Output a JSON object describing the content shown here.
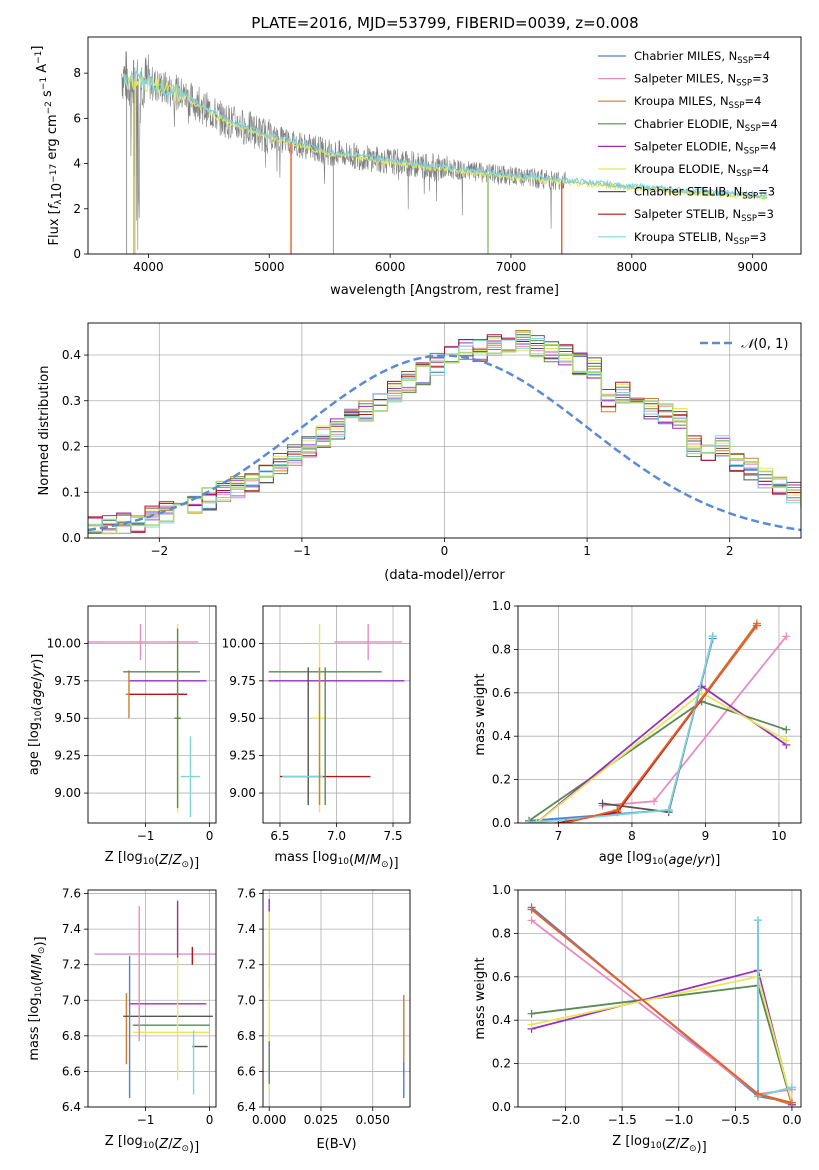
{
  "title": "PLATE=2016, MJD=53799, FIBERID=0039, z=0.008",
  "colors": {
    "chabrier_miles": "#4f7fd6",
    "salpeter_miles": "#e88cc0",
    "kroupa_miles": "#c8812e",
    "chabrier_elodie": "#5a8a55",
    "salpeter_elodie": "#9a2fbe",
    "kroupa_elodie": "#e6e85a",
    "chabrier_stelib": "#555555",
    "salpeter_stelib": "#b01818",
    "kroupa_stelib": "#7fd4e0",
    "data": "#808080",
    "red_model": "#e8602a",
    "normal": "#5b8bd6"
  },
  "legend": [
    {
      "pre": "Chabrier MILES, N",
      "sub": "SSP",
      "post": "=4",
      "color": "#4f7fd6"
    },
    {
      "pre": "Salpeter MILES, N",
      "sub": "SSP",
      "post": "=3",
      "color": "#e88cc0"
    },
    {
      "pre": "Kroupa MILES, N",
      "sub": "SSP",
      "post": "=4",
      "color": "#c8812e"
    },
    {
      "pre": "Chabrier ELODIE, N",
      "sub": "SSP",
      "post": "=4",
      "color": "#5a8a55"
    },
    {
      "pre": "Salpeter ELODIE, N",
      "sub": "SSP",
      "post": "=4",
      "color": "#9a2fbe"
    },
    {
      "pre": "Kroupa ELODIE, N",
      "sub": "SSP",
      "post": "=4",
      "color": "#e6e85a"
    },
    {
      "pre": "Chabrier STELIB, N",
      "sub": "SSP",
      "post": "=3",
      "color": "#555555"
    },
    {
      "pre": "Salpeter STELIB, N",
      "sub": "SSP",
      "post": "=3",
      "color": "#b01818"
    },
    {
      "pre": "Kroupa STELIB, N",
      "sub": "SSP",
      "post": "=3",
      "color": "#7fd4e0"
    }
  ],
  "chart_data": [
    {
      "id": "spectrum",
      "type": "line",
      "xlabel": "wavelength [Angstrom, rest frame]",
      "ylabel": "Flux [f_λ 10^-17 erg cm^-2 s^-1 A^-1]",
      "xlim": [
        3500,
        9400
      ],
      "ylim": [
        0,
        9.6
      ],
      "xticks": [
        4000,
        5000,
        6000,
        7000,
        8000,
        9000
      ],
      "yticks": [
        0,
        2,
        4,
        6,
        8
      ],
      "grid": false,
      "legend_position": "top-right",
      "continuum": {
        "x": [
          3780,
          3850,
          3950,
          4100,
          4300,
          4600,
          5000,
          5500,
          6000,
          6500,
          7000,
          7500,
          8000,
          8500,
          9000,
          9120
        ],
        "y": [
          8.0,
          7.6,
          7.7,
          7.4,
          7.0,
          6.0,
          5.2,
          4.5,
          4.1,
          3.75,
          3.45,
          3.2,
          2.95,
          2.75,
          2.6,
          2.5
        ]
      },
      "model_dropouts": [
        {
          "x": 3890,
          "color": "#e6e85a"
        },
        {
          "x": 5180,
          "color": "#e8602a"
        },
        {
          "x": 6810,
          "color": "#8bc070"
        },
        {
          "x": 7420,
          "color": "#e8602a"
        }
      ],
      "data_range": [
        3780,
        7450
      ],
      "model_range": [
        3790,
        9120
      ]
    },
    {
      "id": "residuals",
      "type": "area",
      "xlabel": "(data-model)/error",
      "ylabel": "Normed distribution",
      "xlim": [
        -2.5,
        2.5
      ],
      "ylim": [
        0,
        0.47
      ],
      "xticks": [
        -2,
        -1,
        0,
        1,
        2
      ],
      "yticks": [
        0.0,
        0.1,
        0.2,
        0.3,
        0.4
      ],
      "grid": true,
      "legend_label": "N(0,1)",
      "legend_position": "top-right",
      "bin_width": 0.1,
      "bin_start": -2.5,
      "base_hist": [
        0.022,
        0.025,
        0.03,
        0.035,
        0.045,
        0.055,
        0.06,
        0.07,
        0.085,
        0.1,
        0.11,
        0.125,
        0.14,
        0.16,
        0.18,
        0.2,
        0.22,
        0.24,
        0.26,
        0.28,
        0.3,
        0.32,
        0.34,
        0.36,
        0.38,
        0.4,
        0.41,
        0.41,
        0.42,
        0.42,
        0.43,
        0.42,
        0.41,
        0.4,
        0.38,
        0.37,
        0.3,
        0.32,
        0.3,
        0.28,
        0.27,
        0.26,
        0.2,
        0.19,
        0.2,
        0.16,
        0.15,
        0.13,
        0.12,
        0.1,
        0.09,
        0.08,
        0.065,
        0.06,
        0.05,
        0.045,
        0.04,
        0.035,
        0.03,
        0.028
      ]
    },
    {
      "id": "age-vs-metallicity",
      "type": "scatter",
      "xlabel": "Z [log10(Z/Z⊙)]",
      "ylabel": "age [log10(age/yr)]",
      "xlim": [
        -1.9,
        0.1
      ],
      "ylim": [
        8.8,
        10.25
      ],
      "xticks": [
        -1,
        0
      ],
      "yticks": [
        9.0,
        9.25,
        9.5,
        9.75,
        10.0
      ],
      "grid": true,
      "points": [
        {
          "x": -0.3,
          "y": 9.11,
          "xerr": 0.15,
          "yerr": 0.27,
          "color": "#7fd4e0"
        },
        {
          "x": -1.08,
          "y": 10.01,
          "xerr": 0.9,
          "yerr": 0.12,
          "color": "#e88cc0"
        },
        {
          "x": -1.26,
          "y": 9.66,
          "xerr": 0.05,
          "yerr": 0.16,
          "color": "#c8812e"
        },
        {
          "x": -0.75,
          "y": 9.81,
          "xerr": 0.6,
          "yerr": 0.0,
          "color": "#5a8a55"
        },
        {
          "x": -0.65,
          "y": 9.75,
          "xerr": 0.6,
          "yerr": 0.0,
          "color": "#9a2fbe"
        },
        {
          "x": -0.5,
          "y": 9.5,
          "xerr": 0.05,
          "yerr": 0.63,
          "color": "#e6e85a"
        },
        {
          "x": -0.52,
          "y": 9.66,
          "xerr": 0.12,
          "yerr": 0.0,
          "color": "#555555"
        },
        {
          "x": -0.8,
          "y": 9.66,
          "xerr": 0.45,
          "yerr": 0.0,
          "color": "#b01818"
        },
        {
          "x": -0.5,
          "y": 9.5,
          "xerr": 0.05,
          "yerr": 0.6,
          "color": "#5a8a55"
        }
      ]
    },
    {
      "id": "age-vs-mass",
      "type": "scatter",
      "xlabel": "mass [log10(M/M⊙)]",
      "ylabel": "",
      "xlim": [
        6.35,
        7.65
      ],
      "ylim": [
        8.8,
        10.25
      ],
      "xticks": [
        6.5,
        7.0,
        7.5
      ],
      "yticks": [
        9.0,
        9.25,
        9.5,
        9.75,
        10.0
      ],
      "grid": true,
      "points": [
        {
          "x": 7.28,
          "y": 10.01,
          "xerr": 0.3,
          "yerr": 0.12,
          "color": "#e88cc0"
        },
        {
          "x": 6.9,
          "y": 9.81,
          "xerr": 0.5,
          "yerr": 0.0,
          "color": "#5a8a55"
        },
        {
          "x": 7.0,
          "y": 9.75,
          "xerr": 0.6,
          "yerr": 0.0,
          "color": "#9a2fbe"
        },
        {
          "x": 6.85,
          "y": 9.5,
          "xerr": 0.05,
          "yerr": 0.63,
          "color": "#e6e85a"
        },
        {
          "x": 6.75,
          "y": 9.38,
          "xerr": 0.0,
          "yerr": 0.46,
          "color": "#555555"
        },
        {
          "x": 6.9,
          "y": 9.11,
          "xerr": 0.4,
          "yerr": 0.0,
          "color": "#b01818"
        },
        {
          "x": 6.7,
          "y": 9.11,
          "xerr": 0.18,
          "yerr": 0.0,
          "color": "#7fd4e0"
        },
        {
          "x": 6.85,
          "y": 9.38,
          "xerr": 0.0,
          "yerr": 0.46,
          "color": "#c8812e"
        },
        {
          "x": 6.9,
          "y": 9.38,
          "xerr": 0.0,
          "yerr": 0.46,
          "color": "#5a8a55"
        }
      ]
    },
    {
      "id": "weight-vs-age",
      "type": "line",
      "xlabel": "age [log10(age/yr)]",
      "ylabel": "mass weight",
      "xlim": [
        6.45,
        10.3
      ],
      "ylim": [
        0,
        1.0
      ],
      "xticks": [
        7,
        8,
        9,
        10
      ],
      "yticks": [
        0.0,
        0.2,
        0.4,
        0.6,
        0.8,
        1.0
      ],
      "grid": true,
      "series": [
        {
          "color": "#4f7fd6",
          "x": [
            6.6,
            8.5,
            9.1
          ],
          "y": [
            0.01,
            0.06,
            0.85
          ]
        },
        {
          "color": "#e88cc0",
          "x": [
            7.6,
            8.3,
            10.1
          ],
          "y": [
            0.08,
            0.1,
            0.86
          ]
        },
        {
          "color": "#c8812e",
          "x": [
            7.0,
            7.8,
            9.7
          ],
          "y": [
            0.0,
            0.05,
            0.92
          ]
        },
        {
          "color": "#5a8a55",
          "x": [
            6.6,
            8.95,
            10.1
          ],
          "y": [
            0.01,
            0.56,
            0.43
          ]
        },
        {
          "color": "#9a2fbe",
          "x": [
            6.7,
            8.95,
            10.1
          ],
          "y": [
            0.0,
            0.63,
            0.36
          ]
        },
        {
          "color": "#e6e85a",
          "x": [
            6.7,
            8.95,
            10.1
          ],
          "y": [
            0.0,
            0.6,
            0.38
          ]
        },
        {
          "color": "#555555",
          "x": [
            7.6,
            8.5,
            9.1
          ],
          "y": [
            0.09,
            0.05,
            0.86
          ]
        },
        {
          "color": "#b01818",
          "x": [
            7.0,
            7.8,
            9.7
          ],
          "y": [
            0.0,
            0.05,
            0.91
          ]
        },
        {
          "color": "#7fd4e0",
          "x": [
            6.6,
            8.5,
            9.1
          ],
          "y": [
            0.0,
            0.06,
            0.86
          ]
        },
        {
          "color": "#e8602a",
          "x": [
            7.1,
            7.8,
            9.7
          ],
          "y": [
            0.0,
            0.06,
            0.91
          ]
        }
      ]
    },
    {
      "id": "mass-vs-metallicity",
      "type": "scatter",
      "xlabel": "Z [log10(Z/Z⊙)]",
      "ylabel": "mass [log10(M/M⊙)]",
      "xlim": [
        -1.9,
        0.1
      ],
      "ylim": [
        6.4,
        7.62
      ],
      "xticks": [
        -1,
        0
      ],
      "yticks": [
        6.4,
        6.6,
        6.8,
        7.0,
        7.2,
        7.4,
        7.6
      ],
      "grid": true,
      "points": [
        {
          "x": -0.85,
          "y": 7.26,
          "xerr": 0.95,
          "yerr": 0.0,
          "color": "#e88cc0"
        },
        {
          "x": -1.3,
          "y": 6.84,
          "xerr": 0.0,
          "yerr": 0.2,
          "color": "#c8812e"
        },
        {
          "x": -0.65,
          "y": 6.91,
          "xerr": 0.7,
          "yerr": 0.0,
          "color": "#555555"
        },
        {
          "x": -0.65,
          "y": 6.98,
          "xerr": 0.6,
          "yerr": 0.0,
          "color": "#9a2fbe"
        },
        {
          "x": -0.6,
          "y": 6.86,
          "xerr": 0.6,
          "yerr": 0.0,
          "color": "#5a8a55"
        },
        {
          "x": -0.6,
          "y": 6.82,
          "xerr": 0.6,
          "yerr": 0.0,
          "color": "#e6e85a"
        },
        {
          "x": -0.15,
          "y": 6.74,
          "xerr": 0.12,
          "yerr": 0.0,
          "color": "#555555"
        },
        {
          "x": -1.1,
          "y": 7.15,
          "xerr": 0.0,
          "yerr": 0.38,
          "color": "#e88cc0"
        },
        {
          "x": -0.5,
          "y": 7.05,
          "xerr": 0.0,
          "yerr": 0.5,
          "color": "#e6e85a"
        },
        {
          "x": -0.25,
          "y": 6.65,
          "xerr": 0.0,
          "yerr": 0.18,
          "color": "#7fd4e0"
        },
        {
          "x": -0.5,
          "y": 7.4,
          "xerr": 0.0,
          "yerr": 0.16,
          "color": "#9a2fbe"
        },
        {
          "x": -1.25,
          "y": 6.85,
          "xerr": 0.0,
          "yerr": 0.4,
          "color": "#4f7fd6"
        },
        {
          "x": -0.27,
          "y": 7.25,
          "xerr": 0.0,
          "yerr": 0.05,
          "color": "#b01818"
        }
      ]
    },
    {
      "id": "mass-vs-extinction",
      "type": "scatter",
      "xlabel": "E(B-V)",
      "ylabel": "",
      "xlim": [
        -0.003,
        0.068
      ],
      "ylim": [
        6.4,
        7.62
      ],
      "xticks": [
        0.0,
        0.025,
        0.05
      ],
      "xticklabels": [
        "0.000",
        "0.025",
        "0.050"
      ],
      "yticks": [
        6.4,
        6.6,
        6.8,
        7.0,
        7.2,
        7.4,
        7.6
      ],
      "grid": true,
      "points": [
        {
          "x": 0.0,
          "y": 7.45,
          "xerr": 0.0,
          "yerr": 0.12,
          "color": "#9a2fbe"
        },
        {
          "x": 0.0,
          "y": 7.2,
          "xerr": 0.0,
          "yerr": 0.13,
          "color": "#b01818"
        },
        {
          "x": 0.0,
          "y": 7.0,
          "xerr": 0.0,
          "yerr": 0.5,
          "color": "#e6e85a"
        },
        {
          "x": 0.0,
          "y": 6.65,
          "xerr": 0.0,
          "yerr": 0.12,
          "color": "#5a8a55"
        },
        {
          "x": 0.065,
          "y": 6.8,
          "xerr": 0.0,
          "yerr": 0.23,
          "color": "#c8812e"
        },
        {
          "x": 0.065,
          "y": 6.55,
          "xerr": 0.0,
          "yerr": 0.1,
          "color": "#4f7fd6"
        }
      ]
    },
    {
      "id": "weight-vs-metallicity",
      "type": "line",
      "xlabel": "Z [log10(Z/Z⊙)]",
      "ylabel": "mass weight",
      "xlim": [
        -2.42,
        0.08
      ],
      "ylim": [
        0,
        1.0
      ],
      "xticks": [
        -2.0,
        -1.5,
        -1.0,
        -0.5,
        0.0
      ],
      "yticks": [
        0.0,
        0.2,
        0.4,
        0.6,
        0.8,
        1.0
      ],
      "grid": true,
      "series": [
        {
          "color": "#4f7fd6",
          "x": [
            -2.3,
            -0.3,
            0.0
          ],
          "y": [
            0.92,
            0.05,
            0.02
          ]
        },
        {
          "color": "#e88cc0",
          "x": [
            -2.3,
            -0.3,
            0.0
          ],
          "y": [
            0.86,
            0.06,
            0.08
          ]
        },
        {
          "color": "#c8812e",
          "x": [
            -2.3,
            -0.3,
            0.0
          ],
          "y": [
            0.91,
            0.06,
            0.01
          ]
        },
        {
          "color": "#5a8a55",
          "x": [
            -2.3,
            -0.3,
            0.0
          ],
          "y": [
            0.43,
            0.56,
            0.01
          ]
        },
        {
          "color": "#9a2fbe",
          "x": [
            -2.3,
            -0.3,
            0.0
          ],
          "y": [
            0.36,
            0.63,
            0.01
          ]
        },
        {
          "color": "#e6e85a",
          "x": [
            -2.3,
            -0.3,
            0.0
          ],
          "y": [
            0.38,
            0.6,
            0.02
          ]
        },
        {
          "color": "#555555",
          "x": [
            -0.3,
            -0.3,
            0.0
          ],
          "y": [
            0.86,
            0.05,
            0.09
          ]
        },
        {
          "color": "#7fd4e0",
          "x": [
            -0.3,
            -0.3,
            0.0
          ],
          "y": [
            0.86,
            0.05,
            0.09
          ]
        },
        {
          "color": "#e8602a",
          "x": [
            -2.3,
            -0.3,
            0.0
          ],
          "y": [
            0.91,
            0.06,
            0.02
          ]
        }
      ]
    }
  ]
}
